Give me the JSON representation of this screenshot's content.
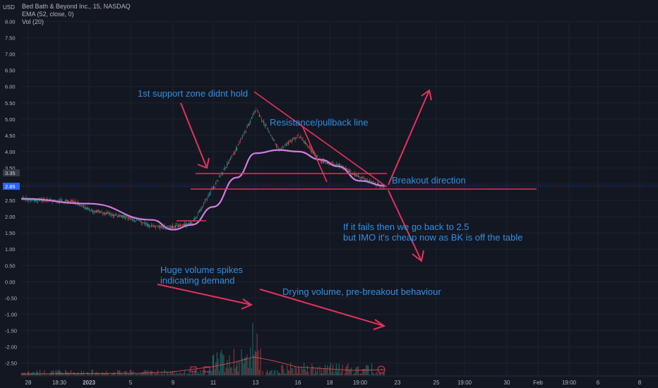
{
  "header": {
    "currency": "USD",
    "symbol": "Bed Bath & Beyond Inc., 15, NASDAQ",
    "ema": "EMA (52, close, 0)",
    "vol": "Vol (20)"
  },
  "colors": {
    "background": "#131722",
    "up": "#26a69a",
    "down": "#ef5350",
    "ema": "#d17ee0",
    "annotation": "#e8315a",
    "text_annotation": "#2f8fe3",
    "axis_text": "#b2b5be"
  },
  "chart_data": {
    "type": "candlestick",
    "symbol": "Bed Bath & Beyond Inc.",
    "exchange": "NASDAQ",
    "interval": "15",
    "ylim": [
      -2.75,
      8.25
    ],
    "y_ticks": [
      "8.00",
      "7.50",
      "7.00",
      "6.50",
      "6.00",
      "5.50",
      "5.00",
      "4.50",
      "4.00",
      "3.50",
      "3.00",
      "2.50",
      "2.00",
      "1.50",
      "1.00",
      "0.50",
      "0.00",
      "-0.50",
      "-1.00",
      "-1.50",
      "-2.00",
      "-2.50"
    ],
    "x_ticks": [
      "28",
      "18:30",
      "2023",
      "5",
      "9",
      "11",
      "13",
      "16",
      "18",
      "19:00",
      "23",
      "25",
      "19:00",
      "30",
      "Feb",
      "19:00",
      "6",
      "8",
      "19:00"
    ],
    "price_labels": [
      {
        "text": "3.35",
        "value": 3.35
      },
      {
        "text": "2.85",
        "value": 2.85
      }
    ],
    "price_path": [
      {
        "x": "Dec 27",
        "y": 2.55
      },
      {
        "x": "Dec 28",
        "y": 2.52
      },
      {
        "x": "Dec 28 18:30",
        "y": 2.48
      },
      {
        "x": "Dec 29",
        "y": 2.47
      },
      {
        "x": "Dec 30",
        "y": 2.42
      },
      {
        "x": "Jan 3",
        "y": 2.2
      },
      {
        "x": "Jan 5",
        "y": 1.95
      },
      {
        "x": "Jan 6",
        "y": 1.7
      },
      {
        "x": "Jan 9",
        "y": 1.68
      },
      {
        "x": "Jan 10",
        "y": 1.8
      },
      {
        "x": "Jan 11",
        "y": 2.9
      },
      {
        "x": "Jan 12",
        "y": 4.1
      },
      {
        "x": "Jan 13",
        "y": 5.3
      },
      {
        "x": "Jan 16",
        "y": 4.05
      },
      {
        "x": "Jan 18",
        "y": 4.5
      },
      {
        "x": "Jan 19",
        "y": 3.7
      },
      {
        "x": "Jan 20",
        "y": 3.6
      },
      {
        "x": "Jan 23",
        "y": 3.2
      },
      {
        "x": "Jan 24",
        "y": 2.9
      }
    ],
    "ema_path": [
      {
        "x": "Dec 27",
        "y": 2.55
      },
      {
        "x": "Jan 3",
        "y": 2.4
      },
      {
        "x": "Jan 6",
        "y": 1.9
      },
      {
        "x": "Jan 9",
        "y": 1.6
      },
      {
        "x": "Jan 10",
        "y": 1.75
      },
      {
        "x": "Jan 11",
        "y": 2.3
      },
      {
        "x": "Jan 12",
        "y": 3.2
      },
      {
        "x": "Jan 13",
        "y": 3.95
      },
      {
        "x": "Jan 16",
        "y": 4.05
      },
      {
        "x": "Jan 18",
        "y": 4.0
      },
      {
        "x": "Jan 19",
        "y": 3.75
      },
      {
        "x": "Jan 20",
        "y": 3.55
      },
      {
        "x": "Jan 23",
        "y": 3.1
      },
      {
        "x": "Jan 24",
        "y": 2.95
      }
    ]
  },
  "annotations": {
    "support": "1st support zone didnt hold",
    "resistance": "Resistance/pullback line",
    "breakout": "Breakout direction",
    "fail1": "If it fails then we go back to 2.5",
    "fail2": "but IMO it's cheap now as BK is off the table",
    "volume1": "Huge volume spikes",
    "volume2": "indicating demand",
    "drying": "Drying volume, pre-breakout behaviour"
  }
}
